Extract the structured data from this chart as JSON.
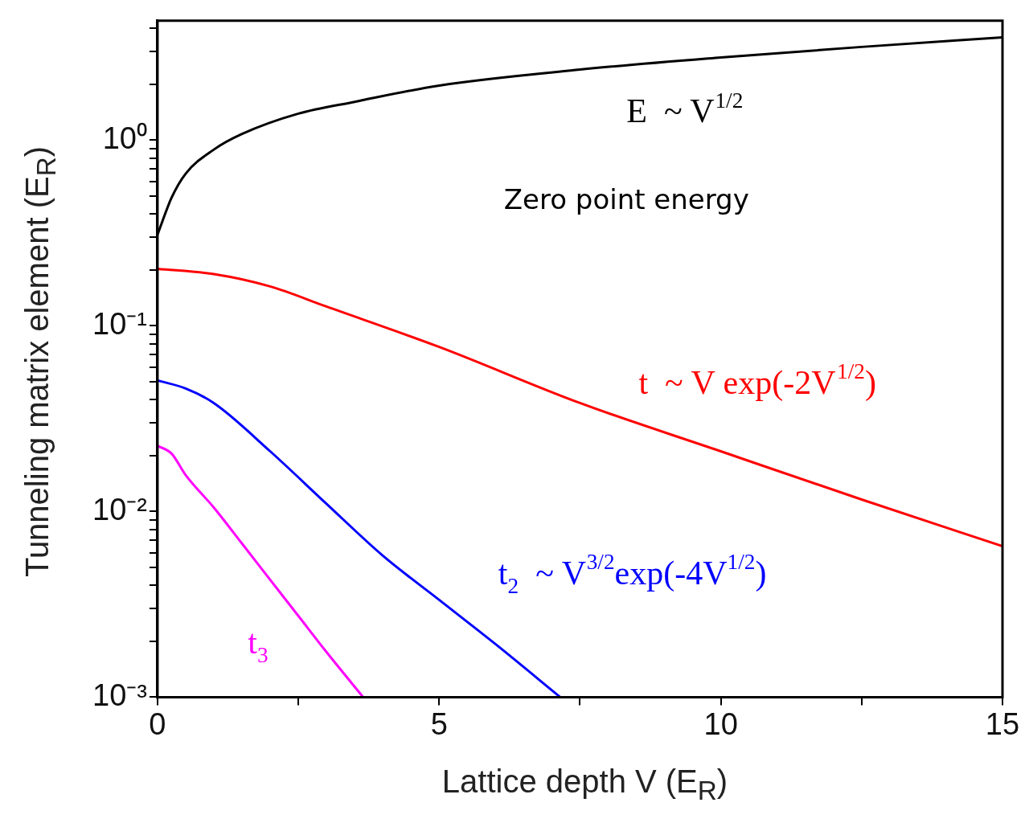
{
  "chart_data": {
    "type": "line",
    "xlabel": "Lattice depth V (E$_{R}$)",
    "ylabel": "Tunneling matrix element  (E$_{R}$)",
    "xlim": [
      0,
      15
    ],
    "xticks": [
      0,
      {
        "value": 2.5,
        "label": null
      },
      5,
      {
        "value": 7.5,
        "label": null
      },
      10,
      {
        "value": 12.5,
        "label": null
      },
      15
    ],
    "ylim": [
      0.001,
      4.4
    ],
    "log": "y",
    "yticks": [
      {
        "value": 0.001,
        "label": "10⁻³"
      },
      {
        "value": 0.002,
        "label": null
      },
      {
        "value": 0.003,
        "label": null
      },
      {
        "value": 0.004,
        "label": null
      },
      {
        "value": 0.005,
        "label": null
      },
      {
        "value": 0.006,
        "label": null
      },
      {
        "value": 0.007,
        "label": null
      },
      {
        "value": 0.008,
        "label": null
      },
      {
        "value": 0.009,
        "label": null
      },
      {
        "value": 0.01,
        "label": "10⁻²"
      },
      {
        "value": 0.02,
        "label": null
      },
      {
        "value": 0.03,
        "label": null
      },
      {
        "value": 0.04,
        "label": null
      },
      {
        "value": 0.05,
        "label": null
      },
      {
        "value": 0.06,
        "label": null
      },
      {
        "value": 0.07,
        "label": null
      },
      {
        "value": 0.08,
        "label": null
      },
      {
        "value": 0.09,
        "label": null
      },
      {
        "value": 0.1,
        "label": "10⁻¹"
      },
      {
        "value": 0.2,
        "label": null
      },
      {
        "value": 0.3,
        "label": null
      },
      {
        "value": 0.4,
        "label": null
      },
      {
        "value": 0.5,
        "label": null
      },
      {
        "value": 0.6,
        "label": null
      },
      {
        "value": 0.7,
        "label": null
      },
      {
        "value": 0.8,
        "label": null
      },
      {
        "value": 0.9,
        "label": null
      },
      {
        "value": 1,
        "label": "10⁰"
      },
      {
        "value": 2,
        "label": null
      },
      {
        "value": 3,
        "label": null
      },
      {
        "value": 4,
        "label": null
      }
    ],
    "grid": false,
    "legend": false,
    "marker": "none",
    "line_style": "solid",
    "series": [
      {
        "name": "E  ~ V$^{1/2}$",
        "color": "#000000",
        "x": [
          0,
          0.25,
          0.5,
          1,
          1.5,
          2.5,
          3.5,
          5,
          7.5,
          10,
          12.5,
          15
        ],
        "values": [
          0.31,
          0.49,
          0.66,
          0.89,
          1.08,
          1.39,
          1.61,
          1.97,
          2.4,
          2.79,
          3.18,
          3.58
        ]
      },
      {
        "name": "t  ~ V exp(-2V$^{1/2}$)",
        "color": "#ff0000",
        "x": [
          0,
          1,
          2,
          3,
          5,
          7.5,
          10,
          12.5,
          15
        ],
        "values": [
          0.203,
          0.19,
          0.163,
          0.127,
          0.077,
          0.0384,
          0.0211,
          0.0116,
          0.0065
        ]
      },
      {
        "name": "t$_{2}$  ~ V$^{3/2}$exp(-4V$^{1/2}$)",
        "color": "#0000ff",
        "x": [
          0,
          0.5,
          1,
          2,
          3,
          4,
          5,
          6,
          7.15
        ],
        "values": [
          0.0508,
          0.046,
          0.0384,
          0.0211,
          0.011,
          0.00578,
          0.00334,
          0.00193,
          0.001
        ]
      },
      {
        "name": "t$_{3}$",
        "color": "#ff00ff",
        "x": [
          0,
          0.25,
          0.5,
          1,
          1.5,
          2,
          2.5,
          3,
          3.65
        ],
        "values": [
          0.0226,
          0.0205,
          0.0157,
          0.0105,
          0.00672,
          0.00429,
          0.00274,
          0.00175,
          0.001
        ]
      }
    ],
    "annotations": [
      "Zero point energy"
    ]
  }
}
